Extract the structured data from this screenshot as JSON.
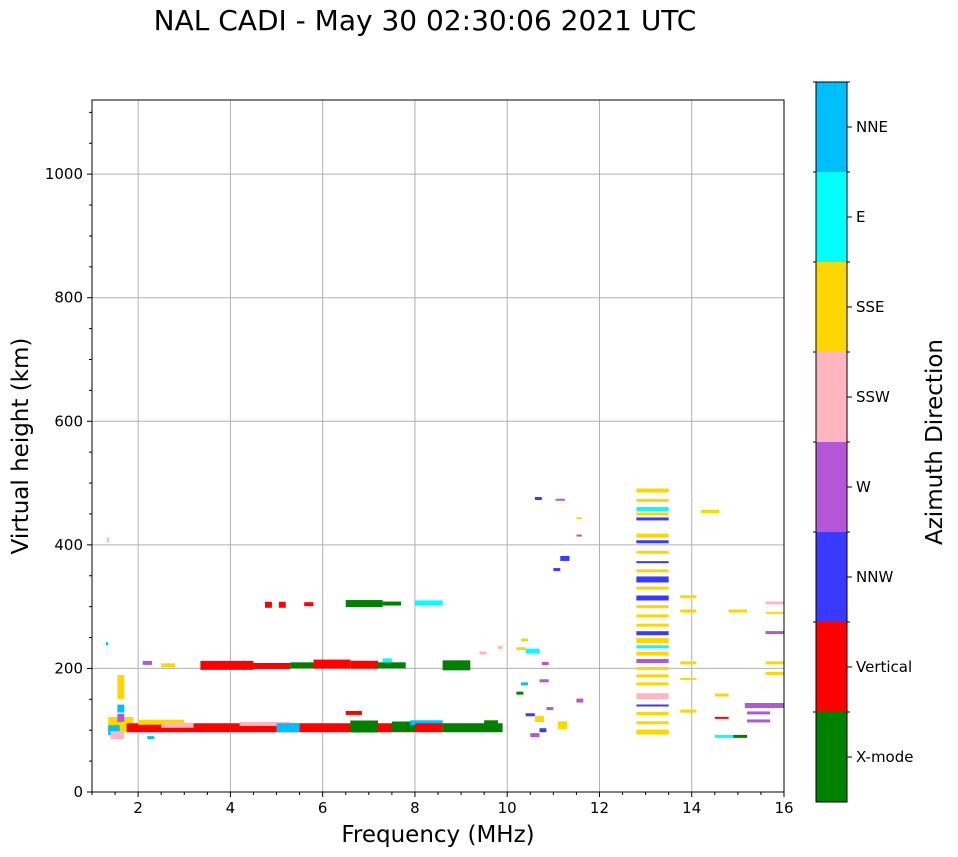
{
  "chart_data": {
    "type": "scatter",
    "title": "NAL CADI - May 30 02:30:06 2021 UTC",
    "xlabel": "Frequency (MHz)",
    "ylabel": "Virtual height (km)",
    "xlim": [
      1,
      16
    ],
    "ylim": [
      0,
      1120
    ],
    "xticks": [
      2,
      4,
      6,
      8,
      10,
      12,
      14,
      16
    ],
    "yticks": [
      0,
      200,
      400,
      600,
      800,
      1000
    ],
    "grid": true,
    "colorbar": {
      "label": "Azimuth Direction",
      "categories": [
        "X-mode",
        "Vertical",
        "NNW",
        "W",
        "SSW",
        "SSE",
        "E",
        "NNE"
      ],
      "colors": [
        "#008000",
        "#ff0000",
        "#3a3aff",
        "#b357d6",
        "#ffb6c1",
        "#ffd700",
        "#00ffff",
        "#00bfff"
      ]
    },
    "segments": [
      {
        "x0": 1.35,
        "x1": 1.9,
        "y": 110,
        "dir": "SSE",
        "h": 14
      },
      {
        "x0": 1.35,
        "x1": 1.6,
        "y": 100,
        "dir": "NNE",
        "h": 10
      },
      {
        "x0": 1.4,
        "x1": 1.7,
        "y": 92,
        "dir": "SSW",
        "h": 8
      },
      {
        "x0": 1.55,
        "x1": 1.7,
        "y": 170,
        "dir": "SSE",
        "h": 24
      },
      {
        "x0": 1.55,
        "x1": 1.7,
        "y": 135,
        "dir": "NNE",
        "h": 8
      },
      {
        "x0": 1.55,
        "x1": 1.7,
        "y": 120,
        "dir": "W",
        "h": 8
      },
      {
        "x0": 1.3,
        "x1": 1.35,
        "y": 240,
        "dir": "NNE",
        "h": 3
      },
      {
        "x0": 1.32,
        "x1": 1.37,
        "y": 408,
        "dir": "SSW",
        "h": 5
      },
      {
        "x0": 1.75,
        "x1": 4.0,
        "y": 104,
        "dir": "Vertical",
        "h": 9
      },
      {
        "x0": 2.0,
        "x1": 3.0,
        "y": 113,
        "dir": "SSE",
        "h": 5
      },
      {
        "x0": 2.5,
        "x1": 3.2,
        "y": 108,
        "dir": "SSW",
        "h": 5
      },
      {
        "x0": 4.0,
        "x1": 8.0,
        "y": 104,
        "dir": "Vertical",
        "h": 9
      },
      {
        "x0": 4.2,
        "x1": 5.3,
        "y": 110,
        "dir": "SSW",
        "h": 4
      },
      {
        "x0": 5.0,
        "x1": 5.5,
        "y": 104,
        "dir": "NNE",
        "h": 9
      },
      {
        "x0": 6.6,
        "x1": 7.2,
        "y": 106,
        "dir": "X-mode",
        "h": 12
      },
      {
        "x0": 7.5,
        "x1": 8.0,
        "y": 106,
        "dir": "X-mode",
        "h": 10
      },
      {
        "x0": 7.9,
        "x1": 8.6,
        "y": 112,
        "dir": "NNE",
        "h": 5
      },
      {
        "x0": 8.0,
        "x1": 8.6,
        "y": 104,
        "dir": "Vertical",
        "h": 9
      },
      {
        "x0": 8.6,
        "x1": 9.9,
        "y": 104,
        "dir": "X-mode",
        "h": 9
      },
      {
        "x0": 9.5,
        "x1": 9.8,
        "y": 112,
        "dir": "X-mode",
        "h": 5
      },
      {
        "x0": 2.2,
        "x1": 2.35,
        "y": 88,
        "dir": "NNE",
        "h": 3
      },
      {
        "x0": 6.5,
        "x1": 6.85,
        "y": 128,
        "dir": "Vertical",
        "h": 4
      },
      {
        "x0": 2.1,
        "x1": 2.3,
        "y": 209,
        "dir": "W",
        "h": 4
      },
      {
        "x0": 2.5,
        "x1": 2.8,
        "y": 205,
        "dir": "SSE",
        "h": 4
      },
      {
        "x0": 3.35,
        "x1": 4.5,
        "y": 205,
        "dir": "Vertical",
        "h": 9
      },
      {
        "x0": 4.5,
        "x1": 5.3,
        "y": 204,
        "dir": "Vertical",
        "h": 6
      },
      {
        "x0": 5.3,
        "x1": 5.8,
        "y": 205,
        "dir": "X-mode",
        "h": 6
      },
      {
        "x0": 5.8,
        "x1": 6.6,
        "y": 207,
        "dir": "Vertical",
        "h": 9
      },
      {
        "x0": 6.6,
        "x1": 7.2,
        "y": 206,
        "dir": "Vertical",
        "h": 8
      },
      {
        "x0": 7.2,
        "x1": 7.8,
        "y": 205,
        "dir": "X-mode",
        "h": 6
      },
      {
        "x0": 7.3,
        "x1": 7.5,
        "y": 213,
        "dir": "E",
        "h": 4
      },
      {
        "x0": 8.6,
        "x1": 9.2,
        "y": 205,
        "dir": "X-mode",
        "h": 10
      },
      {
        "x0": 4.75,
        "x1": 4.9,
        "y": 303,
        "dir": "Vertical",
        "h": 6
      },
      {
        "x0": 5.05,
        "x1": 5.2,
        "y": 303,
        "dir": "Vertical",
        "h": 6
      },
      {
        "x0": 5.6,
        "x1": 5.8,
        "y": 304,
        "dir": "Vertical",
        "h": 4
      },
      {
        "x0": 6.5,
        "x1": 7.3,
        "y": 305,
        "dir": "X-mode",
        "h": 7
      },
      {
        "x0": 7.3,
        "x1": 7.7,
        "y": 305,
        "dir": "X-mode",
        "h": 4
      },
      {
        "x0": 8.0,
        "x1": 8.6,
        "y": 306,
        "dir": "E",
        "h": 5
      },
      {
        "x0": 9.4,
        "x1": 9.55,
        "y": 225,
        "dir": "SSW",
        "h": 3
      },
      {
        "x0": 9.8,
        "x1": 9.9,
        "y": 234,
        "dir": "SSW",
        "h": 3
      },
      {
        "x0": 10.2,
        "x1": 10.4,
        "y": 232,
        "dir": "SSE",
        "h": 3
      },
      {
        "x0": 10.3,
        "x1": 10.45,
        "y": 246,
        "dir": "SSE",
        "h": 3
      },
      {
        "x0": 10.4,
        "x1": 10.7,
        "y": 228,
        "dir": "E",
        "h": 5
      },
      {
        "x0": 10.75,
        "x1": 10.9,
        "y": 208,
        "dir": "W",
        "h": 3
      },
      {
        "x0": 10.2,
        "x1": 10.35,
        "y": 160,
        "dir": "X-mode",
        "h": 3
      },
      {
        "x0": 10.3,
        "x1": 10.45,
        "y": 175,
        "dir": "NNE",
        "h": 3
      },
      {
        "x0": 10.7,
        "x1": 10.9,
        "y": 180,
        "dir": "W",
        "h": 3
      },
      {
        "x0": 10.4,
        "x1": 10.6,
        "y": 125,
        "dir": "NNW",
        "h": 3
      },
      {
        "x0": 10.6,
        "x1": 10.8,
        "y": 118,
        "dir": "SSE",
        "h": 6
      },
      {
        "x0": 10.85,
        "x1": 11.0,
        "y": 135,
        "dir": "W",
        "h": 3
      },
      {
        "x0": 11.1,
        "x1": 11.3,
        "y": 108,
        "dir": "SSE",
        "h": 8
      },
      {
        "x0": 10.5,
        "x1": 10.7,
        "y": 92,
        "dir": "W",
        "h": 4
      },
      {
        "x0": 10.7,
        "x1": 10.85,
        "y": 100,
        "dir": "NNW",
        "h": 4
      },
      {
        "x0": 11.5,
        "x1": 11.65,
        "y": 148,
        "dir": "W",
        "h": 4
      },
      {
        "x0": 10.6,
        "x1": 10.75,
        "y": 475,
        "dir": "NNW",
        "h": 3
      },
      {
        "x0": 11.05,
        "x1": 11.25,
        "y": 473,
        "dir": "W",
        "h": 2
      },
      {
        "x0": 11.5,
        "x1": 11.62,
        "y": 443,
        "dir": "SSE",
        "h": 2
      },
      {
        "x0": 11.5,
        "x1": 11.62,
        "y": 415,
        "dir": "W",
        "h": 2
      },
      {
        "x0": 11.15,
        "x1": 11.35,
        "y": 378,
        "dir": "NNW",
        "h": 5
      },
      {
        "x0": 11.0,
        "x1": 11.15,
        "y": 360,
        "dir": "NNW",
        "h": 3
      },
      {
        "x0": 12.8,
        "x1": 13.5,
        "y": 488,
        "dir": "SSE",
        "h": 4
      },
      {
        "x0": 12.8,
        "x1": 13.5,
        "y": 472,
        "dir": "SSE",
        "h": 3
      },
      {
        "x0": 12.8,
        "x1": 13.5,
        "y": 458,
        "dir": "E",
        "h": 4
      },
      {
        "x0": 12.8,
        "x1": 13.5,
        "y": 450,
        "dir": "SSE",
        "h": 3
      },
      {
        "x0": 12.8,
        "x1": 13.5,
        "y": 442,
        "dir": "NNW",
        "h": 3
      },
      {
        "x0": 12.8,
        "x1": 13.5,
        "y": 415,
        "dir": "SSE",
        "h": 4
      },
      {
        "x0": 12.8,
        "x1": 13.5,
        "y": 405,
        "dir": "NNW",
        "h": 3
      },
      {
        "x0": 12.8,
        "x1": 13.5,
        "y": 388,
        "dir": "SSE",
        "h": 3
      },
      {
        "x0": 12.8,
        "x1": 13.5,
        "y": 372,
        "dir": "NNW",
        "h": 2
      },
      {
        "x0": 12.8,
        "x1": 13.5,
        "y": 358,
        "dir": "SSE",
        "h": 3
      },
      {
        "x0": 12.8,
        "x1": 13.5,
        "y": 344,
        "dir": "NNW",
        "h": 6
      },
      {
        "x0": 12.8,
        "x1": 13.5,
        "y": 330,
        "dir": "SSE",
        "h": 3
      },
      {
        "x0": 12.8,
        "x1": 13.5,
        "y": 314,
        "dir": "NNW",
        "h": 5
      },
      {
        "x0": 12.8,
        "x1": 13.5,
        "y": 300,
        "dir": "SSE",
        "h": 3
      },
      {
        "x0": 12.8,
        "x1": 13.5,
        "y": 285,
        "dir": "SSE",
        "h": 3
      },
      {
        "x0": 12.8,
        "x1": 13.5,
        "y": 270,
        "dir": "SSE",
        "h": 3
      },
      {
        "x0": 12.8,
        "x1": 13.5,
        "y": 257,
        "dir": "NNW",
        "h": 4
      },
      {
        "x0": 12.8,
        "x1": 13.5,
        "y": 245,
        "dir": "SSE",
        "h": 5
      },
      {
        "x0": 12.8,
        "x1": 13.5,
        "y": 235,
        "dir": "E",
        "h": 3
      },
      {
        "x0": 12.8,
        "x1": 13.5,
        "y": 224,
        "dir": "SSE",
        "h": 4
      },
      {
        "x0": 12.8,
        "x1": 13.5,
        "y": 212,
        "dir": "W",
        "h": 4
      },
      {
        "x0": 12.8,
        "x1": 13.5,
        "y": 200,
        "dir": "SSE",
        "h": 3
      },
      {
        "x0": 12.8,
        "x1": 13.5,
        "y": 188,
        "dir": "SSE",
        "h": 3
      },
      {
        "x0": 12.8,
        "x1": 13.5,
        "y": 175,
        "dir": "SSE",
        "h": 3
      },
      {
        "x0": 12.8,
        "x1": 13.5,
        "y": 155,
        "dir": "SSW",
        "h": 6
      },
      {
        "x0": 12.8,
        "x1": 13.5,
        "y": 140,
        "dir": "NNW",
        "h": 2
      },
      {
        "x0": 12.8,
        "x1": 13.5,
        "y": 127,
        "dir": "SSE",
        "h": 3
      },
      {
        "x0": 12.8,
        "x1": 13.5,
        "y": 112,
        "dir": "SSE",
        "h": 3
      },
      {
        "x0": 12.8,
        "x1": 13.5,
        "y": 97,
        "dir": "SSE",
        "h": 5
      },
      {
        "x0": 13.75,
        "x1": 14.1,
        "y": 316,
        "dir": "SSE",
        "h": 3
      },
      {
        "x0": 13.75,
        "x1": 14.1,
        "y": 293,
        "dir": "SSE",
        "h": 3
      },
      {
        "x0": 13.75,
        "x1": 14.1,
        "y": 209,
        "dir": "SSE",
        "h": 3
      },
      {
        "x0": 13.75,
        "x1": 14.1,
        "y": 183,
        "dir": "SSE",
        "h": 2
      },
      {
        "x0": 13.75,
        "x1": 14.1,
        "y": 131,
        "dir": "SSE",
        "h": 3
      },
      {
        "x0": 14.2,
        "x1": 14.6,
        "y": 454,
        "dir": "SSE",
        "h": 3
      },
      {
        "x0": 14.5,
        "x1": 14.8,
        "y": 157,
        "dir": "SSE",
        "h": 3
      },
      {
        "x0": 14.5,
        "x1": 14.8,
        "y": 120,
        "dir": "Vertical",
        "h": 2
      },
      {
        "x0": 14.5,
        "x1": 14.9,
        "y": 90,
        "dir": "E",
        "h": 3
      },
      {
        "x0": 14.9,
        "x1": 15.2,
        "y": 90,
        "dir": "X-mode",
        "h": 3
      },
      {
        "x0": 14.8,
        "x1": 15.2,
        "y": 293,
        "dir": "SSE",
        "h": 3
      },
      {
        "x0": 15.15,
        "x1": 16.0,
        "y": 140,
        "dir": "W",
        "h": 5
      },
      {
        "x0": 15.2,
        "x1": 15.7,
        "y": 128,
        "dir": "W",
        "h": 3
      },
      {
        "x0": 15.2,
        "x1": 15.7,
        "y": 115,
        "dir": "W",
        "h": 3
      },
      {
        "x0": 15.6,
        "x1": 16.0,
        "y": 306,
        "dir": "SSW",
        "h": 3
      },
      {
        "x0": 15.6,
        "x1": 16.0,
        "y": 290,
        "dir": "SSE",
        "h": 2
      },
      {
        "x0": 15.6,
        "x1": 16.0,
        "y": 258,
        "dir": "W",
        "h": 3
      },
      {
        "x0": 15.6,
        "x1": 16.0,
        "y": 209,
        "dir": "SSE",
        "h": 3
      },
      {
        "x0": 15.6,
        "x1": 16.0,
        "y": 192,
        "dir": "SSE",
        "h": 3
      }
    ]
  }
}
